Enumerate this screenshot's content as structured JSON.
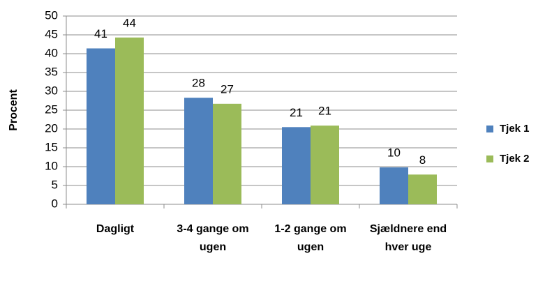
{
  "chart_data": {
    "type": "bar",
    "y_label": "Procent",
    "categories": [
      "Dagligt",
      "3-4 gange om ugen",
      "1-2 gange om ugen",
      "Sjældnere end hver uge"
    ],
    "series": [
      {
        "name": "Tjek 1",
        "color": "#4f81bd",
        "values": [
          41.4,
          28.3,
          20.5,
          9.8
        ],
        "value_labels": [
          "41",
          "28",
          "21",
          "10"
        ]
      },
      {
        "name": "Tjek 2",
        "color": "#9bbb59",
        "values": [
          44.3,
          26.7,
          20.9,
          7.9
        ],
        "value_labels": [
          "44",
          "27",
          "21",
          "8"
        ]
      }
    ],
    "ylim": [
      0,
      50
    ],
    "yticks": [
      0,
      5,
      10,
      15,
      20,
      25,
      30,
      35,
      40,
      45,
      50
    ],
    "grid": true,
    "legend": "right"
  }
}
